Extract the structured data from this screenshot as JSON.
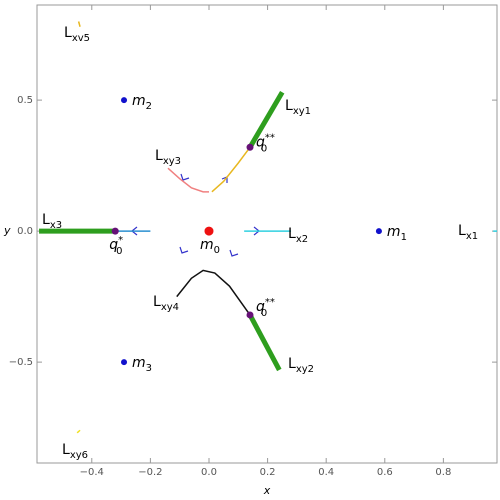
{
  "chart_data": {
    "type": "scatter",
    "x_label": "x",
    "y_label": "y",
    "xlim": [
      -0.587,
      0.983
    ],
    "ylim": [
      -0.885,
      0.863
    ],
    "xticks": [
      {
        "value": -0.4,
        "label": "−0.4"
      },
      {
        "value": -0.2,
        "label": "−0.2"
      },
      {
        "value": 0,
        "label": "0.0"
      },
      0.2,
      0.4,
      0.6,
      0.8
    ],
    "yticks": [
      {
        "value": -0.5,
        "label": "−0.5"
      },
      {
        "value": 0,
        "label": "0.0"
      },
      0.5
    ],
    "series": [
      {
        "label": {
          "base": "L",
          "sub": "xy1"
        },
        "color": "#2e9e1e",
        "width": 5,
        "x": [
          0.14,
          0.25
        ],
        "y": [
          0.32,
          0.53
        ]
      },
      {
        "color": "#e8b820",
        "width": 1.5,
        "x": [
          0.01,
          0.05,
          0.1,
          0.14
        ],
        "y": [
          0.15,
          0.19,
          0.26,
          0.32
        ]
      },
      {
        "label": {
          "base": "L",
          "sub": "xy3"
        },
        "color": "#f08080",
        "width": 1.5,
        "x": [
          -0.14,
          -0.1,
          -0.06,
          -0.02,
          0.0
        ],
        "y": [
          0.24,
          0.2,
          0.165,
          0.15,
          0.15
        ]
      },
      {
        "label": {
          "base": "L",
          "sub": "xy2"
        },
        "color": "#2e9e1e",
        "width": 5,
        "x": [
          0.14,
          0.24
        ],
        "y": [
          -0.32,
          -0.53
        ]
      },
      {
        "label": {
          "base": "L",
          "sub": "xy4"
        },
        "color": "#111111",
        "width": 1.5,
        "x": [
          -0.11,
          -0.06,
          -0.02,
          0.02,
          0.07,
          0.14
        ],
        "y": [
          -0.25,
          -0.18,
          -0.15,
          -0.16,
          -0.21,
          -0.32
        ]
      },
      {
        "label": {
          "base": "L",
          "sub": "x3"
        },
        "color": "#2e9e1e",
        "width": 5,
        "x": [
          -0.58,
          -0.32
        ],
        "y": [
          0,
          0
        ]
      },
      {
        "color": "#2a8fd0",
        "width": 1.5,
        "x": [
          -0.32,
          -0.2
        ],
        "y": [
          0,
          0
        ]
      },
      {
        "label": {
          "base": "L",
          "sub": "x2"
        },
        "color": "#30d0e0",
        "width": 1.5,
        "x": [
          0.12,
          0.28
        ],
        "y": [
          0,
          0
        ]
      },
      {
        "label": {
          "base": "L",
          "sub": "x1"
        },
        "color": "#30d0e0",
        "width": 1.5,
        "x": [
          0.97,
          0.983
        ],
        "y": [
          0,
          0
        ]
      },
      {
        "label": {
          "base": "L",
          "sub": "xv5"
        },
        "color": "#e8b820",
        "width": 1.5,
        "x": [
          -0.445,
          -0.44
        ],
        "y": [
          0.8,
          0.78
        ]
      },
      {
        "label": {
          "base": "L",
          "sub": "xy6"
        },
        "color": "#f0e020",
        "width": 1.5,
        "x": [
          -0.45,
          -0.44
        ],
        "y": [
          -0.77,
          -0.76
        ]
      }
    ],
    "points": [
      {
        "label": {
          "base": "m",
          "sub": "0"
        },
        "x": 0,
        "y": 0,
        "color": "#ee1111",
        "size": 4.5
      },
      {
        "label": {
          "base": "m",
          "sub": "1"
        },
        "x": 0.58,
        "y": 0,
        "color": "#1111cc",
        "size": 3
      },
      {
        "label": {
          "base": "m",
          "sub": "2"
        },
        "x": -0.29,
        "y": 0.5,
        "color": "#1111cc",
        "size": 3
      },
      {
        "label": {
          "base": "m",
          "sub": "3"
        },
        "x": -0.29,
        "y": -0.5,
        "color": "#1111cc",
        "size": 3
      },
      {
        "label": {
          "base": "q",
          "sub": "0",
          "sup": "*"
        },
        "x": -0.32,
        "y": 0,
        "color": "#661177",
        "size": 3.5
      },
      {
        "label": {
          "base": "q",
          "sub": "0",
          "sup": "**"
        },
        "x": 0.14,
        "y": 0.32,
        "color": "#661177",
        "size": 3.5
      },
      {
        "label": {
          "base": "q",
          "sub": "0",
          "sup": "**"
        },
        "x": 0.14,
        "y": -0.32,
        "color": "#661177",
        "size": 3.5
      }
    ]
  }
}
